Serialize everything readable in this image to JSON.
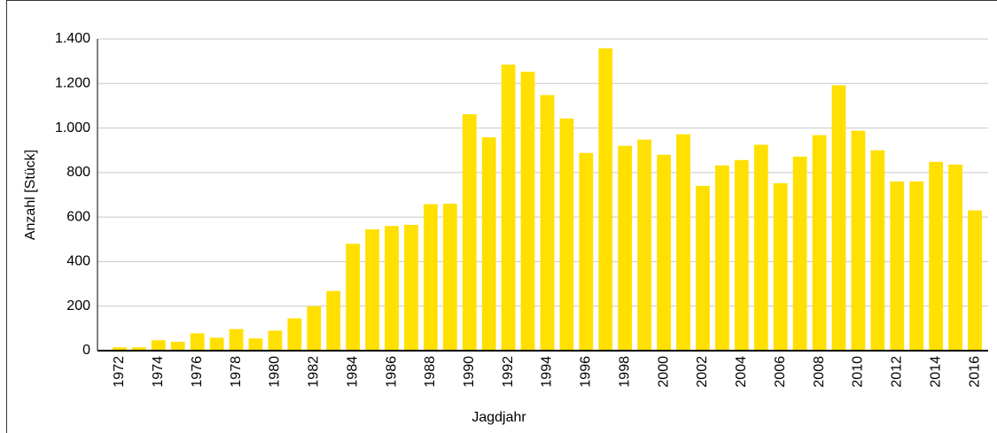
{
  "chart_data": {
    "type": "bar",
    "x_label": "Jagdjahr",
    "y_label": "Anzahl [Stück]",
    "categories": [
      "1972",
      null,
      "1974",
      null,
      "1976",
      null,
      "1978",
      null,
      "1980",
      null,
      "1982",
      null,
      "1984",
      null,
      "1986",
      null,
      "1988",
      null,
      "1990",
      null,
      "1992",
      null,
      "1994",
      null,
      "1996",
      null,
      "1998",
      null,
      "2000",
      null,
      "2002",
      null,
      "2004",
      null,
      "2006",
      null,
      "2008",
      null,
      "2010",
      null,
      "2012",
      null,
      "2014",
      null,
      "2016"
    ],
    "values": [
      15,
      15,
      47,
      40,
      78,
      58,
      97,
      55,
      90,
      145,
      200,
      268,
      480,
      545,
      560,
      565,
      658,
      660,
      1062,
      958,
      1285,
      1253,
      1148,
      1043,
      888,
      1358,
      920,
      948,
      880,
      972,
      740,
      832,
      856,
      925,
      752,
      872,
      968,
      1192,
      988,
      900,
      760,
      760,
      848,
      836,
      630
    ],
    "color": "#ffe000",
    "ylim": [
      0,
      1400
    ],
    "yticks": [
      0,
      200,
      400,
      600,
      800,
      {
        "value": 1000,
        "label": "1.000"
      },
      {
        "value": 1200,
        "label": "1.200"
      },
      {
        "value": 1400,
        "label": "1.400"
      }
    ],
    "grid": true
  }
}
